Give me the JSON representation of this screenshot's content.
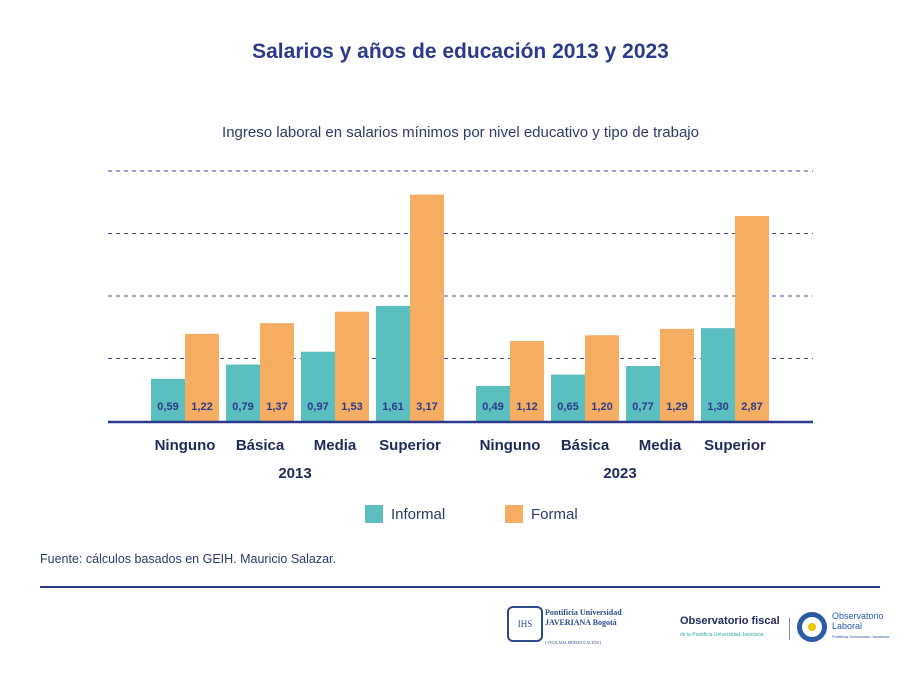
{
  "chart_data": {
    "type": "bar",
    "title": "Salarios y años de educación 2013 y 2023",
    "subtitle": "Ingreso laboral en salarios mínimos por nivel educativo y tipo de trabajo",
    "groups": [
      {
        "year": "2013",
        "categories": [
          "Ninguno",
          "Básica",
          "Media",
          "Superior"
        ],
        "series": [
          {
            "name": "Informal",
            "values": [
              0.59,
              0.79,
              0.97,
              1.61
            ],
            "labels": [
              "0,59",
              "0,79",
              "0,97",
              "1,61"
            ]
          },
          {
            "name": "Formal",
            "values": [
              1.22,
              1.37,
              1.53,
              3.17
            ],
            "labels": [
              "1,22",
              "1,37",
              "1,53",
              "3,17"
            ]
          }
        ]
      },
      {
        "year": "2023",
        "categories": [
          "Ninguno",
          "Básica",
          "Media",
          "Superior"
        ],
        "series": [
          {
            "name": "Informal",
            "values": [
              0.49,
              0.65,
              0.77,
              1.3
            ],
            "labels": [
              "0,49",
              "0,65",
              "0,77",
              "1,30"
            ]
          },
          {
            "name": "Formal",
            "values": [
              1.12,
              1.2,
              1.29,
              2.87
            ],
            "labels": [
              "1,12",
              "1,20",
              "1,29",
              "2,87"
            ]
          }
        ]
      }
    ],
    "legend": [
      "Informal",
      "Formal"
    ],
    "legend_position": "bottom",
    "ylim": [
      0,
      3.5
    ],
    "gridlines": [
      0.875,
      1.75,
      2.625,
      3.5
    ],
    "colors": {
      "Informal": "#5bbfbf",
      "Formal": "#f5ad62",
      "text": "#2b3a8c"
    }
  },
  "source": "Fuente: cálculos basados en GEIH. Mauricio Salazar.",
  "logos": {
    "javeriana": "Pontificia Universidad JAVERIANA Bogotá",
    "javeriana_tag": "[ VIGILADA MINEDUCACIÓN ]",
    "obs_fiscal": "Observatorio fiscal",
    "obs_fiscal_sub": "de la Pontificia Universidad Javeriana",
    "obs_laboral": "Observatorio Laboral",
    "obs_laboral_sub": "Pontificia Universidad Javeriana"
  }
}
